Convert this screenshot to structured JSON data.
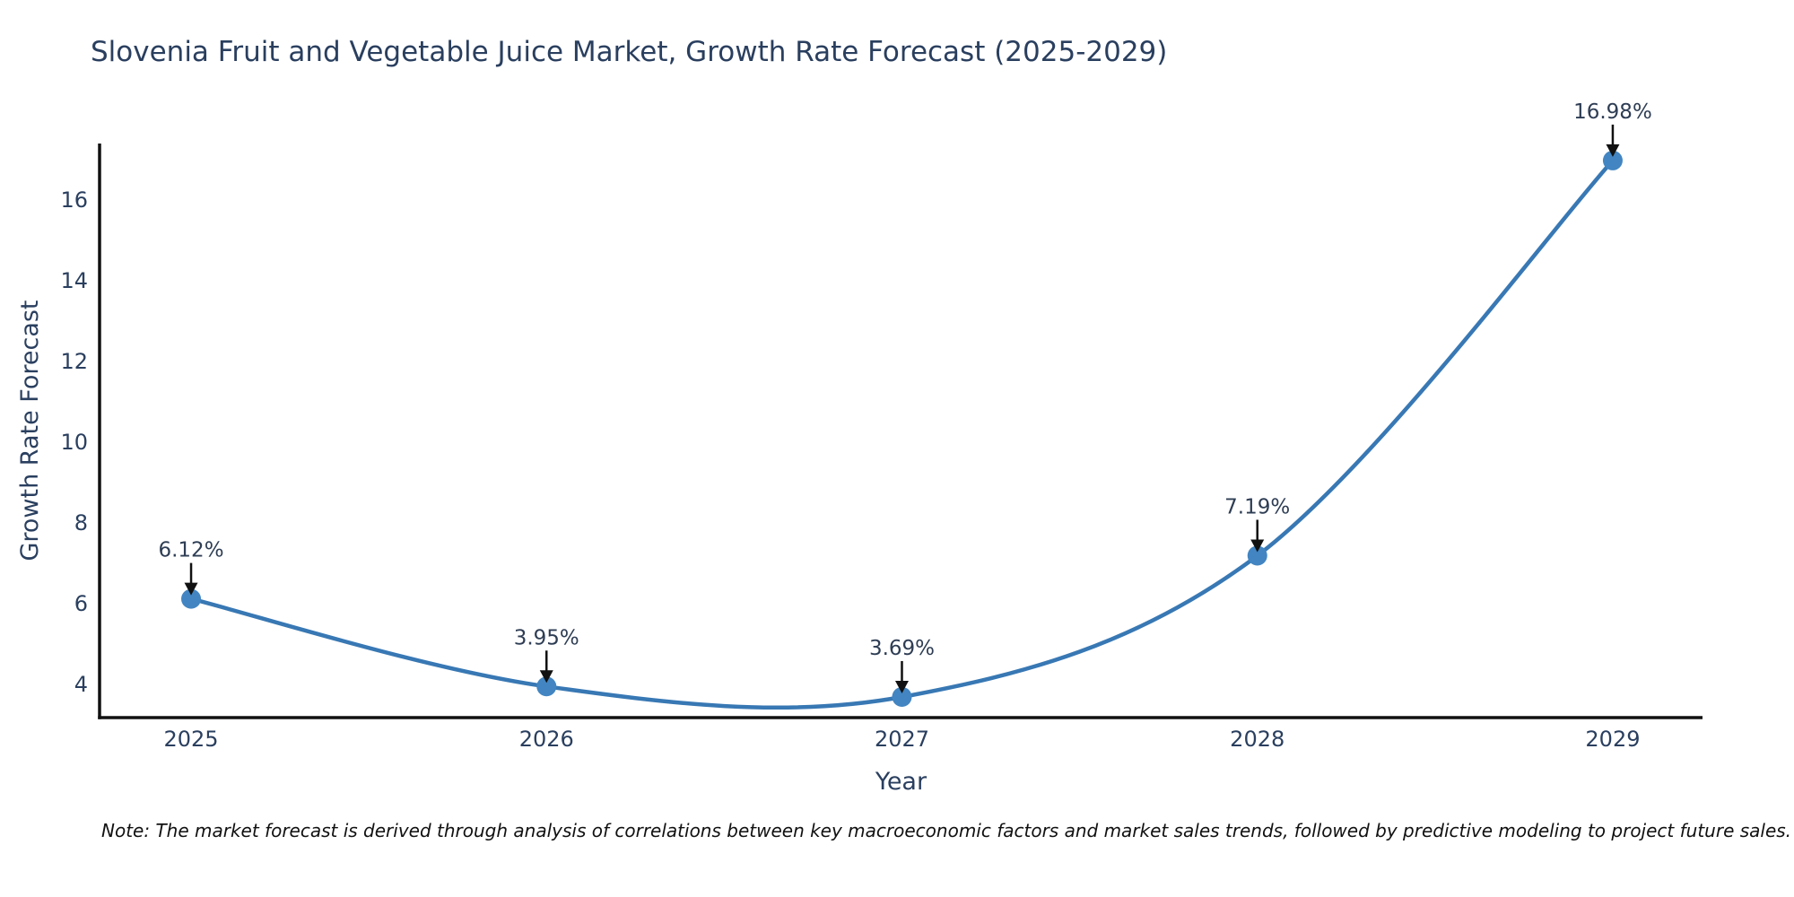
{
  "chart_data": {
    "type": "line",
    "title": "Slovenia Fruit and Vegetable Juice Market, Growth Rate Forecast (2025-2029)",
    "xlabel": "Year",
    "ylabel": "Growth Rate Forecast",
    "x": [
      2025,
      2026,
      2027,
      2028,
      2029
    ],
    "values": [
      6.12,
      3.95,
      3.69,
      7.19,
      16.98
    ],
    "point_labels": [
      "6.12%",
      "3.95%",
      "3.69%",
      "7.19%",
      "16.98%"
    ],
    "xticks": [
      2025,
      2026,
      2027,
      2028,
      2029
    ],
    "xtick_labels": [
      "2025",
      "2026",
      "2027",
      "2028",
      "2029"
    ],
    "yticks": [
      4,
      6,
      8,
      10,
      12,
      14,
      16
    ],
    "ytick_labels": [
      "4",
      "6",
      "8",
      "10",
      "12",
      "14",
      "16"
    ],
    "xlim": [
      2024.7425,
      2029.2525
    ],
    "ylim": [
      3.178,
      17.4
    ],
    "line_shape": "spline",
    "grid": false,
    "legend": false,
    "colors": {
      "line": "#3878b4",
      "marker": "#4285c2",
      "axis": "#111111",
      "tick_text": "#2a3f5f",
      "title_text": "#2a3f5f",
      "annotation_text": "#2e3d54",
      "arrow": "#111111"
    },
    "footnote": "Note: The market forecast is derived through analysis of correlations between key macroeconomic factors and market sales trends, followed by predictive modeling to project future sales."
  }
}
